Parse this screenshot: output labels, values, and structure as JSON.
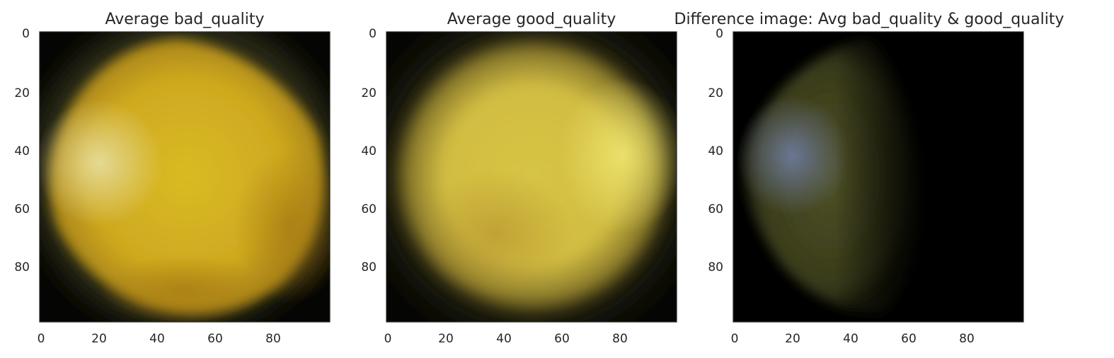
{
  "chart_data": [
    {
      "type": "heatmap",
      "title": "Average bad_quality",
      "image_size": [
        100,
        100
      ],
      "xlim": [
        0,
        100
      ],
      "ylim": [
        100,
        0
      ],
      "xticks": [
        0,
        20,
        40,
        60,
        80
      ],
      "yticks": [
        0,
        20,
        40,
        60,
        80
      ],
      "xlabel": "",
      "ylabel": "",
      "grid": false,
      "colors": {
        "background": "#050503",
        "edge": "#2a2810",
        "body": "#d4b522",
        "light": "#e4d68a",
        "dark": "#b8901a"
      }
    },
    {
      "type": "heatmap",
      "title": "Average good_quality",
      "image_size": [
        100,
        100
      ],
      "xlim": [
        0,
        100
      ],
      "ylim": [
        100,
        0
      ],
      "xticks": [
        0,
        20,
        40,
        60,
        80
      ],
      "yticks": [
        0,
        20,
        40,
        60,
        80
      ],
      "xlabel": "",
      "ylabel": "",
      "grid": false,
      "colors": {
        "background": "#050503",
        "edge": "#2c2a12",
        "body": "#d3c242",
        "light": "#e8df6a",
        "dark": "#c9a934"
      }
    },
    {
      "type": "heatmap",
      "title": "Difference image: Avg bad_quality & good_quality",
      "image_size": [
        100,
        100
      ],
      "xlim": [
        0,
        100
      ],
      "ylim": [
        100,
        0
      ],
      "xticks": [
        0,
        20,
        40,
        60,
        80
      ],
      "yticks": [
        0,
        20,
        40,
        60,
        80
      ],
      "xlabel": "",
      "ylabel": "",
      "grid": false,
      "colors": {
        "background": "#000000",
        "edge": "#0c0c06",
        "body": "#4f5326",
        "light": "#6d7898",
        "dark": "#1a1a0a"
      }
    }
  ]
}
